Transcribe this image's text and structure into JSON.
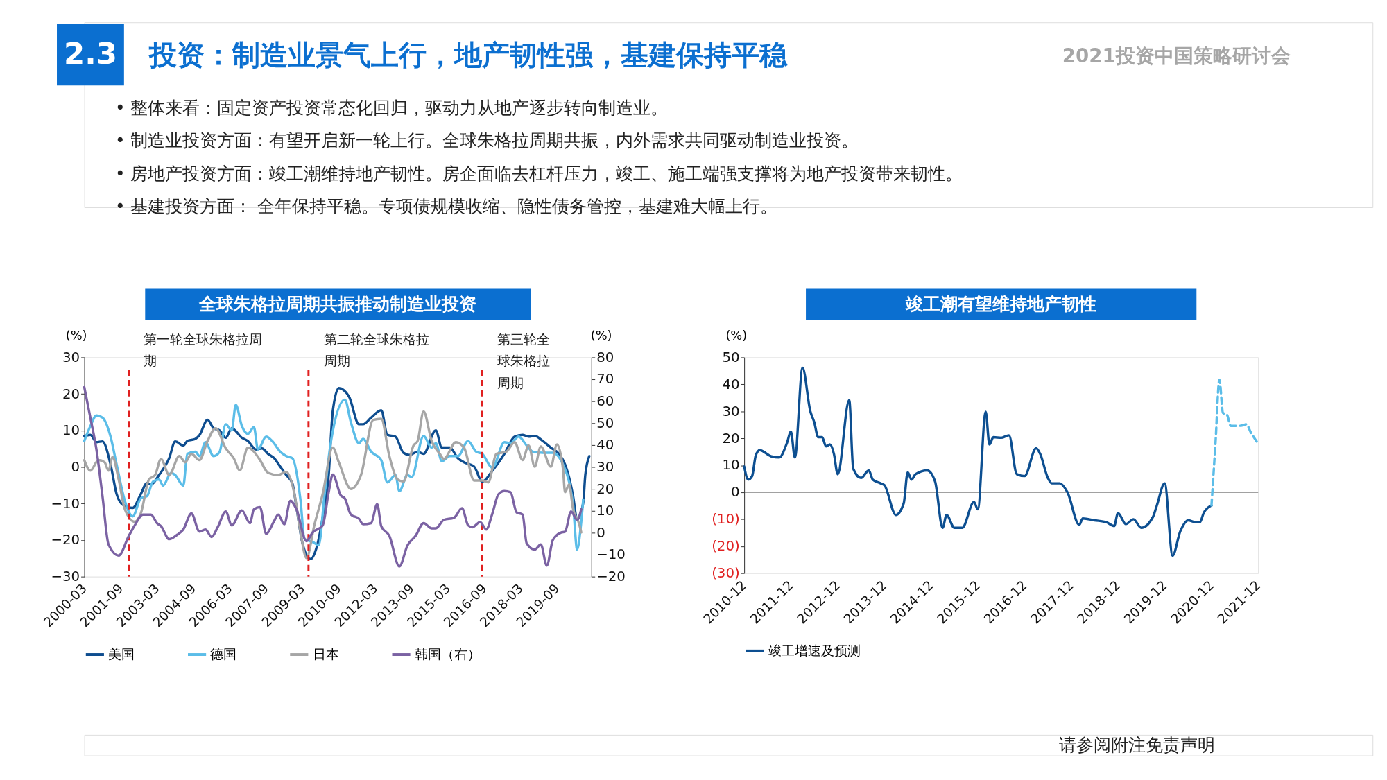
{
  "chart_data": [
    {
      "type": "line",
      "title": "全球朱格拉周期共振推动制造业投资",
      "ylabel": "(%)",
      "y2label": "(%)",
      "annotations": [
        "投资：制造业景气上行，地产韧性强，基建保持平稳",
        "2.3",
        "2021投资中国策略研讨会",
        "• 整体来看：固定资产投资常态化回归，驱动力从地产逐步转向制造业。",
        "• 制造业投资方面：有望开启新一轮上行。全球朱格拉周期共振，内外需求共同驱动制造业投资。",
        "• 房地产投资方面：竣工潮维持地产韧性。房企面临去杠杆压力，竣工、施工端强支撑将为地产投资带来韧性。",
        "• 基建投资方面： 全年保持平稳。专项债规模收缩、隐性债务管控，基建难大幅上行。",
        "请参阅附注免责声明"
      ],
      "xlim": [
        "2000-03",
        "2021-02"
      ],
      "xticks": [
        "2000-03",
        "2001-09",
        "2003-03",
        "2004-09",
        "2006-03",
        "2007-09",
        "2009-03",
        "2010-09",
        "2012-03",
        "2013-09",
        "2015-03",
        "2016-09",
        "2018-03",
        "2019-09"
      ],
      "ylim": [
        -30,
        30
      ],
      "yticks": [
        -30,
        -20,
        -10,
        0,
        10,
        20,
        30
      ],
      "y2lim": [
        -20,
        80
      ],
      "y2ticks": [
        -20,
        -10,
        0,
        10,
        20,
        30,
        40,
        50,
        60,
        70,
        80
      ],
      "legend": "bottom",
      "ref_lines": [
        {
          "axis": "x",
          "value": "2002-01",
          "label": "第一轮全球朱格拉周期",
          "color": "#e02020",
          "line_style": "dashed"
        },
        {
          "axis": "x",
          "value": "2009-06",
          "label": "第二轮全球朱格拉周期",
          "color": "#e02020",
          "line_style": "dashed"
        },
        {
          "axis": "x",
          "value": "2016-08",
          "label": "第三轮全球朱格拉周期",
          "color": "#e02020",
          "line_style": "dashed"
        }
      ],
      "series": [
        {
          "name": "美国",
          "color": "#0e4d8f",
          "x": [
            "2000-03",
            "2000-06",
            "2000-09",
            "2000-12",
            "2001-04",
            "2001-07",
            "2001-10",
            "2002-03",
            "2002-07",
            "2002-10",
            "2002-12",
            "2003-04",
            "2003-09",
            "2003-12",
            "2004-04",
            "2004-06",
            "2004-10",
            "2004-12",
            "2005-04",
            "2005-07",
            "2005-10",
            "2006-01",
            "2006-04",
            "2006-09",
            "2006-12",
            "2007-04",
            "2007-07",
            "2007-10",
            "2008-01",
            "2008-04",
            "2008-07",
            "2008-10",
            "2008-12",
            "2009-03",
            "2009-07",
            "2009-10",
            "2010-01",
            "2010-04",
            "2010-06",
            "2010-09",
            "2011-02",
            "2011-07",
            "2011-09",
            "2012-01",
            "2012-06",
            "2012-09",
            "2013-01",
            "2013-05",
            "2013-08",
            "2013-12",
            "2014-03",
            "2014-09",
            "2014-12",
            "2015-04",
            "2015-08",
            "2015-11",
            "2016-04",
            "2016-08",
            "2017-01",
            "2017-07",
            "2017-12",
            "2018-04",
            "2018-07",
            "2018-10",
            "2019-02",
            "2019-06",
            "2019-10",
            "2020-01",
            "2020-03",
            "2020-05",
            "2020-07",
            "2020-10",
            "2020-11",
            "2021-01"
          ],
          "values": [
            8.5,
            8.8,
            6.8,
            7.0,
            0.7,
            -7.4,
            -10.3,
            -11.2,
            -7.4,
            -4.4,
            -4.8,
            -2.2,
            2.4,
            7.0,
            5.9,
            7.1,
            7.7,
            8.7,
            12.9,
            10.6,
            10.0,
            8.0,
            10.6,
            8.0,
            7.1,
            4.8,
            5.1,
            3.6,
            2.4,
            0.1,
            -2.2,
            -4.5,
            -10.9,
            -20.8,
            -25.2,
            -22.0,
            -13.8,
            -2.2,
            15.2,
            21.6,
            19.3,
            11.7,
            11.7,
            13.5,
            15.5,
            8.8,
            8.3,
            3.9,
            3.3,
            4.2,
            3.6,
            10.0,
            5.3,
            5.3,
            2.4,
            1.3,
            0.1,
            -4.0,
            -1.0,
            3.6,
            8.3,
            8.8,
            8.3,
            8.5,
            7.1,
            5.3,
            3.6,
            0.7,
            -2.8,
            -8.0,
            -14.4,
            -9.8,
            -2.2,
            3.0
          ]
        },
        {
          "name": "德国",
          "color": "#5bbde8",
          "x": [
            "2000-03",
            "2000-06",
            "2000-09",
            "2000-12",
            "2001-04",
            "2001-07",
            "2001-11",
            "2002-03",
            "2002-07",
            "2002-10",
            "2003-01",
            "2003-04",
            "2003-06",
            "2003-10",
            "2003-12",
            "2004-04",
            "2004-06",
            "2004-10",
            "2004-12",
            "2005-03",
            "2005-07",
            "2005-10",
            "2006-01",
            "2006-04",
            "2006-06",
            "2006-09",
            "2006-12",
            "2007-03",
            "2007-05",
            "2007-09",
            "2007-12",
            "2008-04",
            "2008-07",
            "2008-10",
            "2009-02",
            "2009-04",
            "2009-08",
            "2009-11",
            "2010-02",
            "2010-05",
            "2010-12",
            "2011-03",
            "2011-07",
            "2011-09",
            "2012-01",
            "2012-06",
            "2012-09",
            "2013-01",
            "2013-03",
            "2013-07",
            "2013-09",
            "2014-03",
            "2014-07",
            "2014-09",
            "2014-12",
            "2015-04",
            "2015-08",
            "2016-01",
            "2016-05",
            "2016-08",
            "2017-01",
            "2017-07",
            "2017-10",
            "2018-02",
            "2018-06",
            "2018-09",
            "2019-02",
            "2019-07",
            "2019-12",
            "2020-03",
            "2020-05",
            "2020-07",
            "2020-09",
            "2020-10"
          ],
          "values": [
            7.1,
            11.2,
            14.1,
            13.5,
            8.3,
            0.7,
            -9.2,
            -13.5,
            -8.6,
            -8.0,
            -4.0,
            -3.4,
            -5.1,
            -1.6,
            -2.2,
            -5.1,
            3.6,
            4.2,
            3.0,
            6.8,
            3.0,
            4.2,
            11.7,
            10.0,
            17.0,
            11.2,
            9.1,
            10.9,
            4.8,
            8.3,
            7.1,
            4.2,
            3.0,
            2.4,
            -9.2,
            -19.7,
            -20.5,
            -21.4,
            -6.9,
            6.5,
            18.4,
            12.3,
            6.5,
            7.7,
            4.2,
            1.9,
            -4.2,
            -2.2,
            -6.6,
            -2.2,
            -2.8,
            8.5,
            5.3,
            6.5,
            1.6,
            3.0,
            3.0,
            7.1,
            4.2,
            3.6,
            -0.2,
            6.8,
            6.5,
            8.3,
            5.9,
            4.2,
            3.9,
            3.9,
            0.7,
            -4.0,
            -10.3,
            -22.6,
            -15.0,
            -8.9
          ]
        },
        {
          "name": "日本",
          "color": "#a6a6a6",
          "x": [
            "2000-03",
            "2000-06",
            "2000-10",
            "2001-01",
            "2001-03",
            "2001-05",
            "2001-08",
            "2001-11",
            "2002-04",
            "2002-07",
            "2002-11",
            "2003-02",
            "2003-05",
            "2003-09",
            "2004-02",
            "2004-05",
            "2004-08",
            "2004-12",
            "2005-04",
            "2005-08",
            "2006-01",
            "2006-05",
            "2006-08",
            "2006-12",
            "2007-03",
            "2007-06",
            "2007-10",
            "2008-03",
            "2008-07",
            "2008-11",
            "2009-02",
            "2009-05",
            "2009-09",
            "2010-01",
            "2010-06",
            "2010-09",
            "2011-03",
            "2011-08",
            "2012-02",
            "2012-06",
            "2012-10",
            "2013-02",
            "2013-05",
            "2013-10",
            "2013-12",
            "2014-03",
            "2014-07",
            "2014-11",
            "2015-01",
            "2015-07",
            "2015-11",
            "2016-04",
            "2016-08",
            "2016-11",
            "2017-03",
            "2017-08",
            "2017-12",
            "2018-04",
            "2018-07",
            "2018-10",
            "2019-01",
            "2019-06",
            "2019-09",
            "2019-12",
            "2020-01",
            "2020-03",
            "2020-05",
            "2020-08",
            "2020-09"
          ],
          "values": [
            1.9,
            -1.0,
            1.9,
            1.3,
            -1.0,
            2.7,
            -3.4,
            -11.5,
            -15.0,
            -12.7,
            -3.4,
            -2.2,
            2.2,
            -2.2,
            3.0,
            1.3,
            3.6,
            1.9,
            7.1,
            10.6,
            5.1,
            2.4,
            -0.9,
            5.3,
            4.2,
            1.9,
            -1.6,
            -2.2,
            -1.3,
            -7.4,
            -17.9,
            -24.9,
            -15.6,
            -7.4,
            5.3,
            1.3,
            -6.0,
            -2.2,
            12.9,
            13.2,
            3.0,
            -3.4,
            -4.0,
            5.9,
            7.1,
            15.2,
            7.1,
            3.6,
            2.2,
            6.8,
            5.3,
            -3.7,
            -3.7,
            -4.2,
            3.6,
            4.2,
            6.8,
            1.9,
            5.9,
            0.1,
            5.6,
            0.1,
            6.2,
            -0.5,
            -6.9,
            -4.8,
            -11.5,
            -15.6,
            -17.9
          ]
        },
        {
          "name": "韩国（右）",
          "color": "#7b62a3",
          "axis": "y2",
          "x": [
            "2000-03",
            "2000-06",
            "2000-09",
            "2000-12",
            "2001-03",
            "2001-08",
            "2002-01",
            "2002-04",
            "2002-08",
            "2002-12",
            "2003-03",
            "2003-05",
            "2003-09",
            "2004-01",
            "2004-04",
            "2004-08",
            "2004-12",
            "2005-03",
            "2005-06",
            "2005-09",
            "2006-01",
            "2006-04",
            "2006-09",
            "2007-01",
            "2007-03",
            "2007-06",
            "2007-09",
            "2008-01",
            "2008-03",
            "2008-06",
            "2008-09",
            "2008-12",
            "2009-05",
            "2009-08",
            "2010-01",
            "2010-04",
            "2010-06",
            "2010-10",
            "2010-12",
            "2011-03",
            "2011-07",
            "2011-09",
            "2012-01",
            "2012-04",
            "2012-06",
            "2012-10",
            "2013-03",
            "2013-07",
            "2013-11",
            "2014-03",
            "2014-07",
            "2014-09",
            "2015-01",
            "2015-06",
            "2015-10",
            "2016-01",
            "2016-03",
            "2016-07",
            "2016-10",
            "2017-01",
            "2017-04",
            "2017-07",
            "2017-10",
            "2018-01",
            "2018-04",
            "2018-06",
            "2018-10",
            "2019-01",
            "2019-04",
            "2019-07",
            "2019-11",
            "2020-01",
            "2020-04",
            "2020-07",
            "2020-09"
          ],
          "values": [
            66.4,
            52.4,
            37.8,
            16.5,
            -5.3,
            -10.4,
            -1.4,
            3.4,
            8.3,
            8.3,
            4.4,
            3.0,
            -2.9,
            -0.9,
            1.5,
            8.8,
            0.5,
            1.5,
            -1.9,
            2.5,
            9.7,
            3.4,
            10.2,
            4.4,
            10.7,
            11.7,
            -0.4,
            5.4,
            8.3,
            3.9,
            14.6,
            10.7,
            -3.8,
            0.1,
            3.4,
            18.5,
            26.5,
            17.0,
            15.6,
            8.3,
            6.4,
            3.9,
            4.4,
            13.1,
            3.0,
            -1.4,
            -15.4,
            -5.8,
            -1.4,
            4.4,
            2.0,
            2.0,
            5.9,
            6.8,
            11.2,
            3.4,
            2.5,
            4.9,
            1.5,
            8.8,
            17.5,
            19.0,
            18.5,
            9.3,
            8.3,
            -4.8,
            -7.7,
            -5.3,
            -15.0,
            -3.3,
            0.1,
            0.5,
            9.7,
            5.9,
            10.7
          ]
        }
      ]
    },
    {
      "type": "line",
      "title": "竣工潮有望维持地产韧性",
      "ylabel": "(%)",
      "xlim": [
        "2010-12",
        "2021-12"
      ],
      "xticks": [
        "2010-12",
        "2011-12",
        "2012-12",
        "2013-12",
        "2014-12",
        "2015-12",
        "2016-12",
        "2017-12",
        "2018-12",
        "2019-12",
        "2020-12",
        "2021-12"
      ],
      "ylim": [
        -30,
        50
      ],
      "yticks": [
        {
          "value": -30,
          "label": "(30)"
        },
        {
          "value": -20,
          "label": "(20)"
        },
        {
          "value": -10,
          "label": "(10)"
        },
        0,
        10,
        20,
        30,
        40,
        50
      ],
      "legend": "bottom",
      "series": [
        {
          "name": "竣工增速及预测",
          "color": "#0d4f91",
          "x": [
            "2010-12",
            "2011-01",
            "2011-02",
            "2011-03",
            "2011-04",
            "2011-07",
            "2011-09",
            "2011-11",
            "2011-12",
            "2012-01",
            "2012-03",
            "2012-05",
            "2012-06",
            "2012-07",
            "2012-08",
            "2012-09",
            "2012-10",
            "2012-11",
            "2012-12",
            "2013-03",
            "2013-04",
            "2013-06",
            "2013-08",
            "2013-09",
            "2013-11",
            "2013-12",
            "2014-03",
            "2014-05",
            "2014-06",
            "2014-07",
            "2014-08",
            "2014-11",
            "2015-01",
            "2015-03",
            "2015-04",
            "2015-06",
            "2015-08",
            "2015-11",
            "2015-12",
            "2016-02",
            "2016-03",
            "2016-04",
            "2016-06",
            "2016-08",
            "2016-10",
            "2016-12",
            "2017-03",
            "2017-04",
            "2017-06",
            "2017-07",
            "2017-09",
            "2017-11",
            "2018-02",
            "2018-03",
            "2018-06",
            "2018-09",
            "2018-11",
            "2018-12",
            "2019-02",
            "2019-04",
            "2019-06",
            "2019-09",
            "2019-10",
            "2019-12",
            "2020-02",
            "2020-04",
            "2020-06",
            "2020-08",
            "2020-09",
            "2020-10",
            "2020-12"
          ],
          "values": [
            9.5,
            4.7,
            6.0,
            13.6,
            15.6,
            13.3,
            12.9,
            18.4,
            22.5,
            12.9,
            46.1,
            30.0,
            25.9,
            20.4,
            20.4,
            17.0,
            17.7,
            14.3,
            6.7,
            34.2,
            8.8,
            5.3,
            8.1,
            4.7,
            3.3,
            2.6,
            -8.4,
            -4.1,
            7.4,
            4.7,
            6.7,
            8.1,
            4.0,
            -13.2,
            -8.4,
            -13.2,
            -13.2,
            -3.6,
            -6.3,
            29.8,
            17.7,
            20.4,
            20.2,
            21.1,
            6.7,
            6.0,
            16.3,
            14.3,
            5.3,
            3.3,
            3.3,
            0,
            -12.1,
            -9.7,
            -10.4,
            -11.1,
            -12.5,
            -7.7,
            -11.8,
            -10.0,
            -13.2,
            -9.1,
            -4.9,
            3.3,
            -23.5,
            -14.5,
            -10.4,
            -11.1,
            -11.1,
            -7.7,
            -4.9
          ]
        },
        {
          "color": "#5bbde8",
          "line_style": "dashed",
          "x": [
            "2020-12",
            "2021-01",
            "2021-02",
            "2021-03",
            "2021-04",
            "2021-05",
            "2021-07",
            "2021-08",
            "2021-09",
            "2021-10",
            "2021-12"
          ],
          "values": [
            -4.9,
            18.0,
            41.7,
            29.4,
            28.7,
            24.6,
            24.6,
            24.8,
            25.2,
            22.5,
            18.0
          ]
        }
      ]
    }
  ]
}
